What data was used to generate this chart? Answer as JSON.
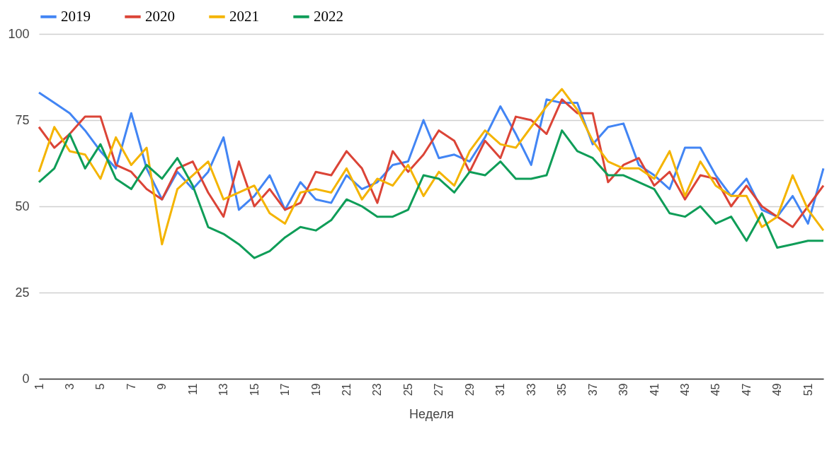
{
  "chart_data": {
    "type": "line",
    "xlabel": "Неделя",
    "x": [
      1,
      2,
      3,
      4,
      5,
      6,
      7,
      8,
      9,
      10,
      11,
      12,
      13,
      14,
      15,
      16,
      17,
      18,
      19,
      20,
      21,
      22,
      23,
      24,
      25,
      26,
      27,
      28,
      29,
      30,
      31,
      32,
      33,
      34,
      35,
      36,
      37,
      38,
      39,
      40,
      41,
      42,
      43,
      44,
      45,
      46,
      47,
      48,
      49,
      50,
      51,
      52
    ],
    "xlim": [
      1,
      52
    ],
    "xticks": [
      1,
      3,
      5,
      7,
      9,
      11,
      13,
      15,
      17,
      19,
      21,
      23,
      25,
      27,
      29,
      31,
      33,
      35,
      37,
      39,
      41,
      43,
      45,
      47,
      49,
      51
    ],
    "ylim": [
      0,
      100
    ],
    "yticks": [
      0,
      25,
      50,
      75,
      100
    ],
    "grid": "y",
    "legend": "top",
    "marker": "none",
    "series": [
      {
        "name": "2019",
        "color": "#4285f4",
        "values": [
          83,
          80,
          77,
          72,
          66,
          61,
          77,
          61,
          52,
          60,
          55,
          60,
          70,
          49,
          53,
          59,
          49,
          57,
          52,
          51,
          59,
          55,
          57,
          62,
          63,
          75,
          64,
          65,
          63,
          70,
          79,
          71,
          62,
          81,
          80,
          80,
          68,
          73,
          74,
          62,
          59,
          55,
          67,
          67,
          59,
          53,
          58,
          49,
          47,
          53,
          45,
          61
        ]
      },
      {
        "name": "2020",
        "color": "#db4437",
        "values": [
          73,
          67,
          71,
          76,
          76,
          62,
          60,
          55,
          52,
          61,
          63,
          54,
          47,
          63,
          50,
          55,
          49,
          51,
          60,
          59,
          66,
          61,
          51,
          66,
          60,
          65,
          72,
          69,
          60,
          69,
          64,
          76,
          75,
          71,
          81,
          77,
          77,
          57,
          62,
          64,
          56,
          60,
          52,
          59,
          58,
          50,
          56,
          50,
          47,
          44,
          50,
          56
        ]
      },
      {
        "name": "2021",
        "color": "#f4b400",
        "values": [
          60,
          73,
          66,
          65,
          58,
          70,
          62,
          67,
          39,
          55,
          59,
          63,
          52,
          54,
          56,
          48,
          45,
          54,
          55,
          54,
          61,
          52,
          58,
          56,
          62,
          53,
          60,
          56,
          66,
          72,
          68,
          67,
          73,
          79,
          84,
          78,
          69,
          63,
          61,
          61,
          58,
          66,
          53,
          63,
          56,
          53,
          53,
          44,
          47,
          59,
          49,
          43
        ]
      },
      {
        "name": "2022",
        "color": "#0f9d58",
        "values": [
          57,
          61,
          71,
          61,
          68,
          58,
          55,
          62,
          58,
          64,
          56,
          44,
          42,
          39,
          35,
          37,
          41,
          44,
          43,
          46,
          52,
          50,
          47,
          47,
          49,
          59,
          58,
          54,
          60,
          59,
          63,
          58,
          58,
          59,
          72,
          66,
          64,
          59,
          59,
          57,
          55,
          48,
          47,
          50,
          45,
          47,
          40,
          48,
          38,
          39,
          40,
          40
        ]
      }
    ]
  }
}
